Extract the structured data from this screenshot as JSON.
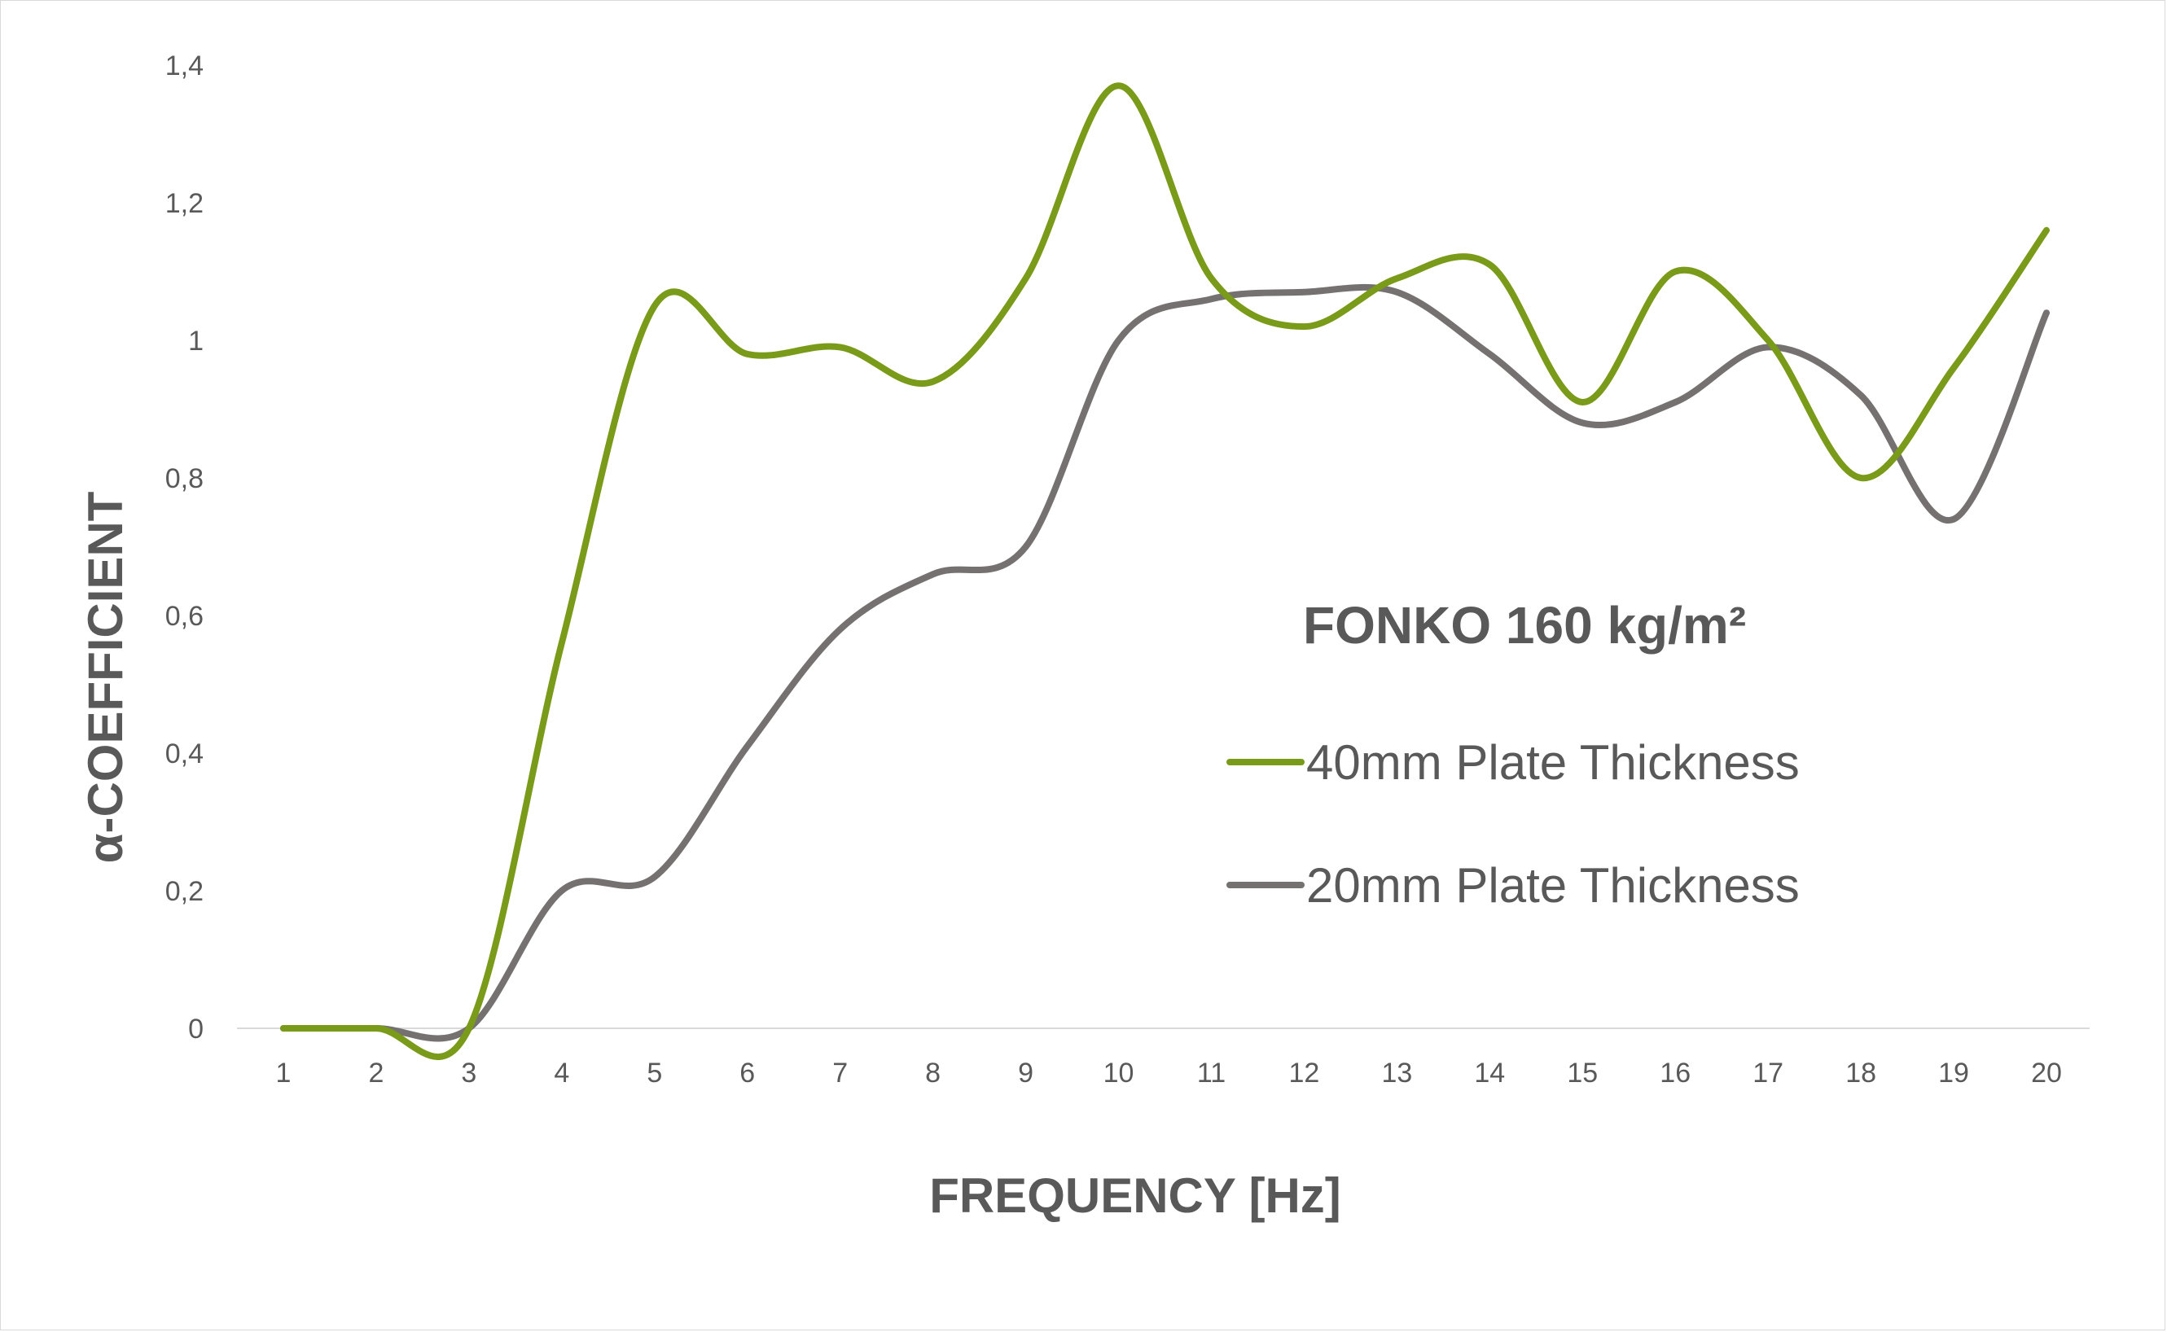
{
  "chart_data": {
    "type": "line",
    "title": "FONKO 160 kg/m²",
    "xlabel": "FREQUENCY [Hz]",
    "ylabel": "α-COEFFICIENT",
    "categories": [
      "1",
      "2",
      "3",
      "4",
      "5",
      "6",
      "7",
      "8",
      "9",
      "10",
      "11",
      "12",
      "13",
      "14",
      "15",
      "16",
      "17",
      "18",
      "19",
      "20"
    ],
    "y_tick_labels": [
      "0",
      "0,2",
      "0,4",
      "0,6",
      "0,8",
      "1",
      "1,2",
      "1,4"
    ],
    "ylim": [
      0,
      1.4
    ],
    "grid": false,
    "legend_position": "right, inside plot",
    "series": [
      {
        "name": "40mm Plate Thickness",
        "color": "#7a9a1a",
        "values": [
          0,
          0,
          0,
          0.56,
          1.05,
          0.98,
          0.99,
          0.94,
          1.09,
          1.37,
          1.09,
          1.02,
          1.09,
          1.11,
          0.91,
          1.1,
          1.0,
          0.8,
          0.96,
          1.16
        ]
      },
      {
        "name": "20mm Plate Thickness",
        "color": "#767171",
        "values": [
          0,
          0,
          0,
          0.2,
          0.22,
          0.41,
          0.58,
          0.66,
          0.7,
          1.0,
          1.06,
          1.07,
          1.07,
          0.98,
          0.88,
          0.91,
          0.99,
          0.92,
          0.74,
          1.04
        ]
      }
    ]
  }
}
